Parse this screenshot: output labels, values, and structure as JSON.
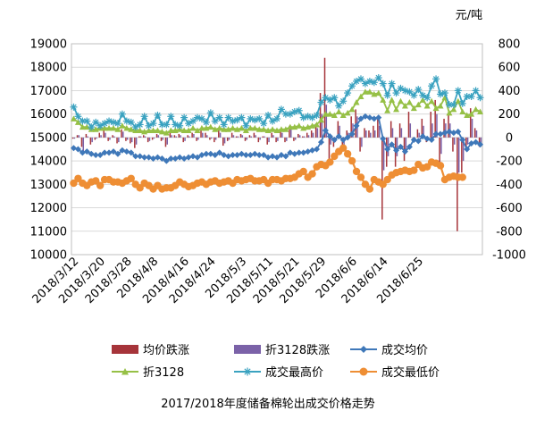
{
  "chart_data": {
    "type": "line",
    "title": "2017/2018年度储备棉轮出成交价格走势",
    "unit_label": "元/吨",
    "left_axis": {
      "ylim": [
        10000,
        19000
      ],
      "ticks": [
        10000,
        11000,
        12000,
        13000,
        14000,
        15000,
        16000,
        17000,
        18000,
        19000
      ]
    },
    "right_axis": {
      "ylim": [
        -1000,
        800
      ],
      "ticks": [
        -1000,
        -800,
        -600,
        -400,
        -200,
        0,
        200,
        400,
        600,
        800
      ]
    },
    "x_tick_labels": [
      "2018/3/12",
      "2018/3/20",
      "2018/3/28",
      "2018/4/8",
      "2018/4/16",
      "2018/4/24",
      "2018/5/3",
      "2018/5/11",
      "2018/5/21",
      "2018/5/29",
      "2018/6/6",
      "2018/6/14",
      "2018/6/25"
    ],
    "legend": {
      "position": "bottom",
      "items": [
        "均价跌涨",
        "折3128跌涨",
        "成交均价",
        "折3128",
        "成交最高价",
        "成交最低价"
      ]
    },
    "colors": {
      "均价跌涨": "#a6343a",
      "折3128跌涨": "#7b62a8",
      "成交均价": "#3f78b9",
      "折3128": "#96c046",
      "成交最高价": "#3aa2c0",
      "成交最低价": "#ee8e34"
    },
    "series": [
      {
        "name": "成交均价",
        "axis": "left",
        "values": [
          14550,
          14500,
          14350,
          14400,
          14300,
          14250,
          14250,
          14350,
          14350,
          14400,
          14300,
          14450,
          14400,
          14350,
          14200,
          14200,
          14150,
          14150,
          14100,
          14150,
          14100,
          14000,
          14100,
          14100,
          14150,
          14100,
          14150,
          14200,
          14150,
          14250,
          14300,
          14300,
          14250,
          14350,
          14250,
          14200,
          14250,
          14250,
          14300,
          14250,
          14250,
          14300,
          14250,
          14250,
          14150,
          14200,
          14150,
          14250,
          14200,
          14350,
          14300,
          14350,
          14350,
          14400,
          14450,
          14500,
          14800,
          15300,
          15050,
          14900,
          15050,
          14900,
          15000,
          15150,
          15500,
          15800,
          15900,
          15850,
          15800,
          15850,
          14950,
          14500,
          14700,
          14450,
          14600,
          14400,
          14600,
          14900,
          14850,
          15050,
          14950,
          14900,
          15150,
          15150,
          15200,
          15250,
          15200,
          15250,
          14900,
          14500,
          14750,
          14800,
          14700
        ]
      },
      {
        "name": "折3128",
        "axis": "left",
        "values": [
          15800,
          15650,
          15450,
          15450,
          15350,
          15350,
          15400,
          15400,
          15400,
          15400,
          15350,
          15500,
          15400,
          15350,
          15300,
          15300,
          15250,
          15300,
          15300,
          15300,
          15250,
          15200,
          15300,
          15300,
          15350,
          15300,
          15300,
          15400,
          15300,
          15400,
          15400,
          15450,
          15350,
          15400,
          15350,
          15350,
          15400,
          15350,
          15400,
          15300,
          15400,
          15400,
          15350,
          15350,
          15300,
          15350,
          15300,
          15350,
          15350,
          15450,
          15450,
          15500,
          15400,
          15450,
          15500,
          15550,
          15750,
          16000,
          16000,
          15950,
          16100,
          15950,
          16050,
          16200,
          16500,
          16750,
          16950,
          16950,
          16850,
          16900,
          16600,
          16150,
          16600,
          16200,
          16550,
          16350,
          16500,
          16250,
          16400,
          16600,
          16350,
          16550,
          16250,
          16350,
          16700,
          16050,
          16200,
          16550,
          16100,
          15950,
          16000,
          16200,
          16100
        ]
      },
      {
        "name": "成交最高价",
        "axis": "left",
        "values": [
          16300,
          15900,
          15700,
          15700,
          15450,
          15650,
          15500,
          15600,
          15700,
          15650,
          15600,
          16000,
          15700,
          15650,
          15450,
          15550,
          15900,
          15500,
          15600,
          15950,
          15550,
          15550,
          15900,
          15550,
          15500,
          15850,
          15600,
          15700,
          15850,
          15800,
          15650,
          16050,
          15700,
          15850,
          15550,
          15850,
          15700,
          15750,
          15850,
          15500,
          15800,
          15750,
          15800,
          15600,
          15950,
          15700,
          15800,
          16200,
          16000,
          16000,
          16100,
          16150,
          15850,
          15900,
          15850,
          15950,
          16500,
          16700,
          16600,
          16700,
          16350,
          16550,
          16900,
          17200,
          17400,
          17500,
          17300,
          17400,
          17350,
          17550,
          17300,
          16800,
          17300,
          16900,
          17100,
          17000,
          16950,
          16800,
          17050,
          16800,
          16700,
          17200,
          17500,
          16850,
          16900,
          16400,
          16400,
          17000,
          16450,
          16750,
          16750,
          17000,
          16700
        ]
      },
      {
        "name": "成交最低价",
        "axis": "left",
        "values": [
          13050,
          13250,
          13050,
          12950,
          13100,
          13150,
          12950,
          13200,
          13200,
          13100,
          13100,
          13050,
          13150,
          13250,
          13000,
          12850,
          13050,
          12950,
          12800,
          12950,
          12800,
          12850,
          12850,
          12950,
          13100,
          13000,
          12900,
          12950,
          13050,
          13100,
          13000,
          13100,
          13150,
          13050,
          13100,
          13150,
          13050,
          13200,
          13150,
          13200,
          13250,
          13150,
          13150,
          13200,
          13050,
          13200,
          13200,
          13150,
          13250,
          13250,
          13300,
          13450,
          13550,
          13300,
          13450,
          13750,
          13850,
          13800,
          13950,
          14200,
          14400,
          14550,
          14300,
          14000,
          13550,
          13300,
          13000,
          12800,
          13200,
          13100,
          13000,
          13200,
          13400,
          13500,
          13550,
          13600,
          13550,
          13600,
          13850,
          13700,
          13750,
          13950,
          13900,
          13800,
          13200,
          13300,
          13350,
          13300,
          13300
        ]
      },
      {
        "name": "均价跌涨",
        "axis": "right",
        "type": "bar",
        "values": [
          -10,
          20,
          -80,
          30,
          -60,
          -20,
          40,
          60,
          -30,
          20,
          -50,
          70,
          -30,
          -50,
          -90,
          10,
          20,
          -40,
          -20,
          30,
          -30,
          -80,
          40,
          20,
          30,
          -40,
          20,
          40,
          -30,
          60,
          40,
          -20,
          -40,
          60,
          -70,
          -30,
          40,
          10,
          30,
          -30,
          20,
          40,
          -40,
          10,
          -60,
          40,
          -40,
          60,
          -40,
          100,
          -30,
          30,
          10,
          40,
          60,
          120,
          380,
          680,
          -200,
          -80,
          140,
          -120,
          60,
          180,
          240,
          -120,
          80,
          60,
          100,
          160,
          -700,
          -250,
          140,
          -250,
          120,
          -200,
          220,
          -30,
          70,
          160,
          -40,
          220,
          320,
          -250,
          160,
          210,
          -120,
          -800,
          -300,
          -100,
          250,
          80,
          -80
        ]
      },
      {
        "name": "折3128跌涨",
        "axis": "right",
        "type": "bar",
        "values": [
          -10,
          20,
          -120,
          10,
          -40,
          -10,
          20,
          40,
          -20,
          10,
          -40,
          50,
          -20,
          -40,
          -60,
          10,
          10,
          -30,
          -10,
          20,
          -20,
          -60,
          20,
          10,
          20,
          -30,
          10,
          30,
          -20,
          40,
          20,
          -10,
          -20,
          40,
          -50,
          -20,
          20,
          10,
          20,
          -20,
          10,
          20,
          -20,
          10,
          -40,
          20,
          -30,
          40,
          -30,
          80,
          -20,
          20,
          10,
          20,
          40,
          80,
          200,
          280,
          -60,
          -40,
          100,
          -80,
          40,
          120,
          180,
          -80,
          60,
          40,
          60,
          100,
          -280,
          -160,
          80,
          -160,
          80,
          -120,
          120,
          -20,
          40,
          100,
          -20,
          120,
          200,
          -140,
          120,
          120,
          -60,
          -300,
          -200,
          -60,
          160,
          60,
          -60
        ]
      }
    ]
  }
}
